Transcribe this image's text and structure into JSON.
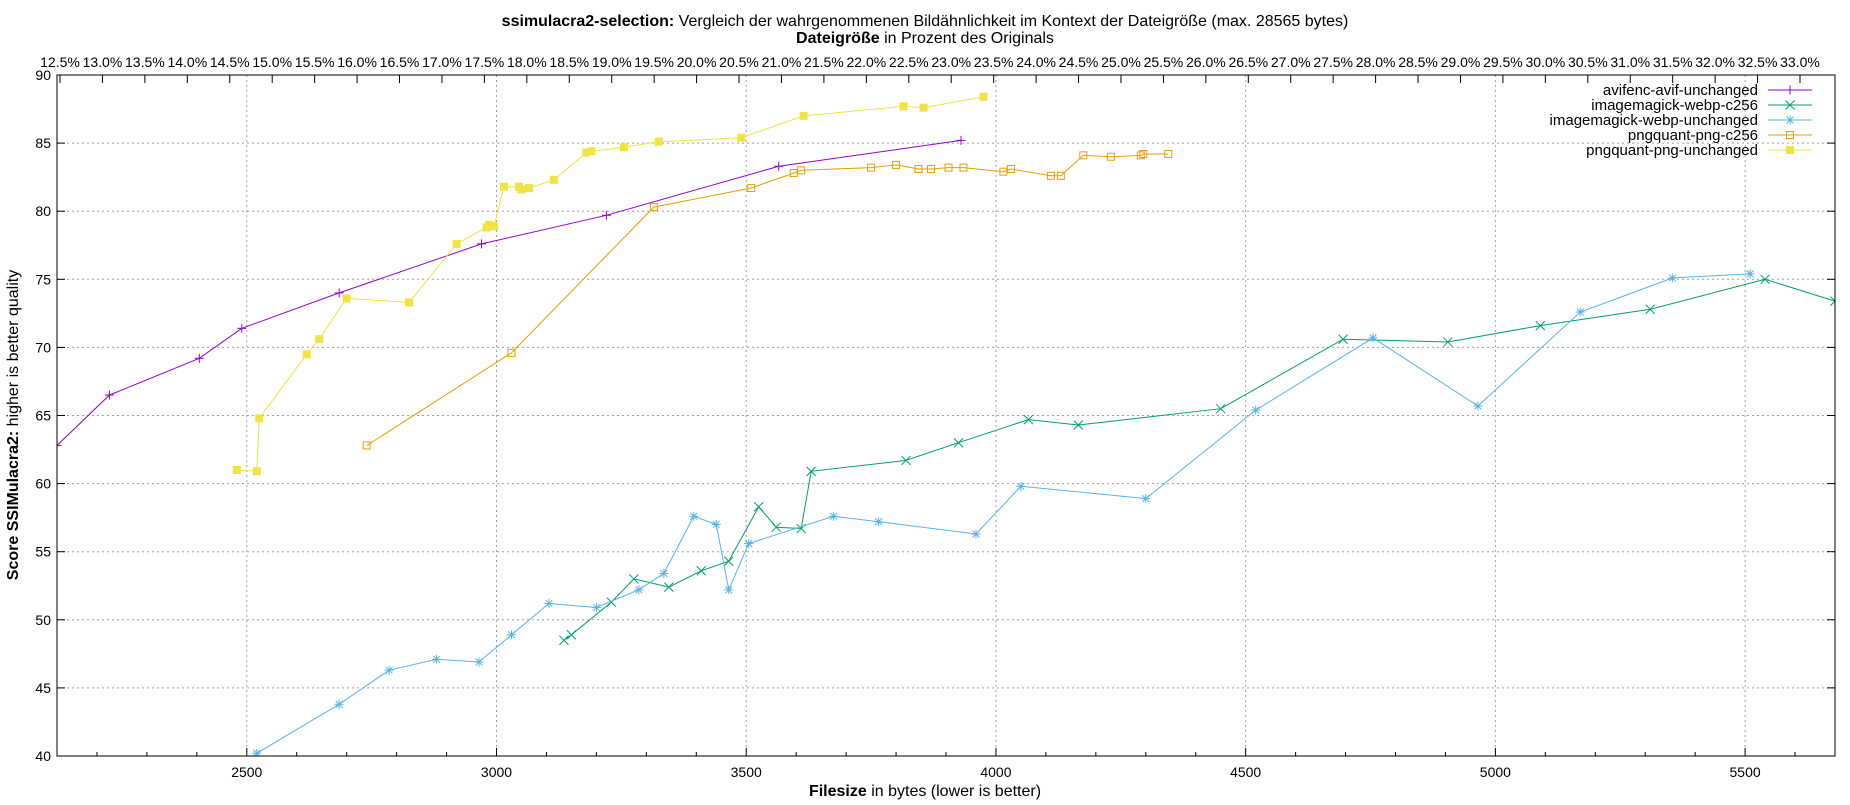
{
  "chart_data": {
    "type": "line",
    "title_bold": "ssimulacra2-selection:",
    "title_rest": " Vergleich der wahrgenommenen Bildähnlichkeit im Kontext der Dateigröße (max. 28565 bytes)",
    "x2label_bold": "Dateigröße",
    "x2label_rest": " in Prozent des Originals",
    "xlabel_bold": "Filesize",
    "xlabel_rest": " in bytes (lower is better)",
    "ylabel_bold": "Score SSIMulacra2:",
    "ylabel_rest": " higher is better quality",
    "xlim": [
      2120,
      5680
    ],
    "ylim": [
      40,
      90
    ],
    "x_ticks": [
      2500,
      3000,
      3500,
      4000,
      4500,
      5000,
      5500
    ],
    "y_ticks": [
      40,
      45,
      50,
      55,
      60,
      65,
      70,
      75,
      80,
      85,
      90
    ],
    "x2_ticks": [
      "12.5%",
      "13.0%",
      "13.5%",
      "14.0%",
      "14.5%",
      "15.0%",
      "15.5%",
      "16.0%",
      "16.5%",
      "17.0%",
      "17.5%",
      "18.0%",
      "18.5%",
      "19.0%",
      "19.5%",
      "20.0%",
      "20.5%",
      "21.0%",
      "21.5%",
      "22.0%",
      "22.5%",
      "23.0%",
      "23.5%",
      "24.0%",
      "24.5%",
      "25.0%",
      "25.5%",
      "26.0%",
      "26.5%",
      "27.0%",
      "27.5%",
      "28.0%",
      "28.5%",
      "29.0%",
      "29.5%",
      "30.0%",
      "30.5%",
      "31.0%",
      "31.5%",
      "32.0%",
      "32.5%",
      "33.0%"
    ],
    "grid": true,
    "legend_position": "top-right",
    "series": [
      {
        "name": "avifenc-avif-unchanged",
        "color": "#9400d3",
        "marker": "plus",
        "points": [
          [
            2120,
            62.8
          ],
          [
            2225,
            66.5
          ],
          [
            2405,
            69.2
          ],
          [
            2490,
            71.4
          ],
          [
            2685,
            74.0
          ],
          [
            2970,
            77.6
          ],
          [
            3220,
            79.7
          ],
          [
            3565,
            83.3
          ],
          [
            3930,
            85.2
          ]
        ]
      },
      {
        "name": "imagemagick-webp-c256",
        "color": "#009e73",
        "marker": "cross",
        "points": [
          [
            3135,
            48.5
          ],
          [
            3150,
            48.9
          ],
          [
            3230,
            51.3
          ],
          [
            3275,
            53.0
          ],
          [
            3345,
            52.4
          ],
          [
            3410,
            53.6
          ],
          [
            3465,
            54.3
          ],
          [
            3525,
            58.3
          ],
          [
            3560,
            56.8
          ],
          [
            3610,
            56.7
          ],
          [
            3630,
            60.9
          ],
          [
            3820,
            61.7
          ],
          [
            3925,
            63.0
          ],
          [
            4065,
            64.7
          ],
          [
            4165,
            64.3
          ],
          [
            4450,
            65.5
          ],
          [
            4695,
            70.6
          ],
          [
            4905,
            70.4
          ],
          [
            5090,
            71.6
          ],
          [
            5310,
            72.8
          ],
          [
            5540,
            75.0
          ],
          [
            5680,
            73.4
          ]
        ]
      },
      {
        "name": "imagemagick-webp-unchanged",
        "color": "#56b4e9",
        "marker": "star",
        "points": [
          [
            2520,
            40.2
          ],
          [
            2685,
            43.8
          ],
          [
            2785,
            46.3
          ],
          [
            2880,
            47.1
          ],
          [
            2965,
            46.9
          ],
          [
            3030,
            48.9
          ],
          [
            3105,
            51.2
          ],
          [
            3200,
            50.9
          ],
          [
            3285,
            52.2
          ],
          [
            3335,
            53.4
          ],
          [
            3395,
            57.6
          ],
          [
            3440,
            57.0
          ],
          [
            3465,
            52.2
          ],
          [
            3505,
            55.6
          ],
          [
            3675,
            57.6
          ],
          [
            3765,
            57.2
          ],
          [
            3960,
            56.3
          ],
          [
            4050,
            59.8
          ],
          [
            4300,
            58.9
          ],
          [
            4520,
            65.4
          ],
          [
            4755,
            70.7
          ],
          [
            4965,
            65.7
          ],
          [
            5170,
            72.6
          ],
          [
            5355,
            75.1
          ],
          [
            5510,
            75.4
          ]
        ]
      },
      {
        "name": "pngquant-png-c256",
        "color": "#e69f00",
        "marker": "square",
        "points": [
          [
            2740,
            62.8
          ],
          [
            3030,
            69.6
          ],
          [
            3315,
            80.3
          ],
          [
            3510,
            81.7
          ],
          [
            3595,
            82.8
          ],
          [
            3610,
            83.0
          ],
          [
            3750,
            83.2
          ],
          [
            3800,
            83.4
          ],
          [
            3845,
            83.1
          ],
          [
            3870,
            83.1
          ],
          [
            3905,
            83.2
          ],
          [
            3935,
            83.2
          ],
          [
            4015,
            82.9
          ],
          [
            4030,
            83.1
          ],
          [
            4110,
            82.6
          ],
          [
            4130,
            82.6
          ],
          [
            4175,
            84.1
          ],
          [
            4230,
            84.0
          ],
          [
            4290,
            84.1
          ],
          [
            4295,
            84.2
          ],
          [
            4345,
            84.2
          ]
        ]
      },
      {
        "name": "pngquant-png-unchanged",
        "color": "#f0e442",
        "marker": "filled-square",
        "points": [
          [
            2480,
            61.0
          ],
          [
            2520,
            60.9
          ],
          [
            2525,
            64.8
          ],
          [
            2620,
            69.5
          ],
          [
            2645,
            70.6
          ],
          [
            2700,
            73.6
          ],
          [
            2825,
            73.3
          ],
          [
            2920,
            77.6
          ],
          [
            2980,
            78.8
          ],
          [
            2985,
            79.0
          ],
          [
            2995,
            78.9
          ],
          [
            3015,
            81.8
          ],
          [
            3045,
            81.8
          ],
          [
            3050,
            81.6
          ],
          [
            3065,
            81.7
          ],
          [
            3115,
            82.3
          ],
          [
            3180,
            84.3
          ],
          [
            3190,
            84.4
          ],
          [
            3255,
            84.7
          ],
          [
            3325,
            85.1
          ],
          [
            3490,
            85.4
          ],
          [
            3615,
            87.0
          ],
          [
            3815,
            87.7
          ],
          [
            3855,
            87.6
          ],
          [
            3975,
            88.4
          ]
        ]
      }
    ]
  }
}
